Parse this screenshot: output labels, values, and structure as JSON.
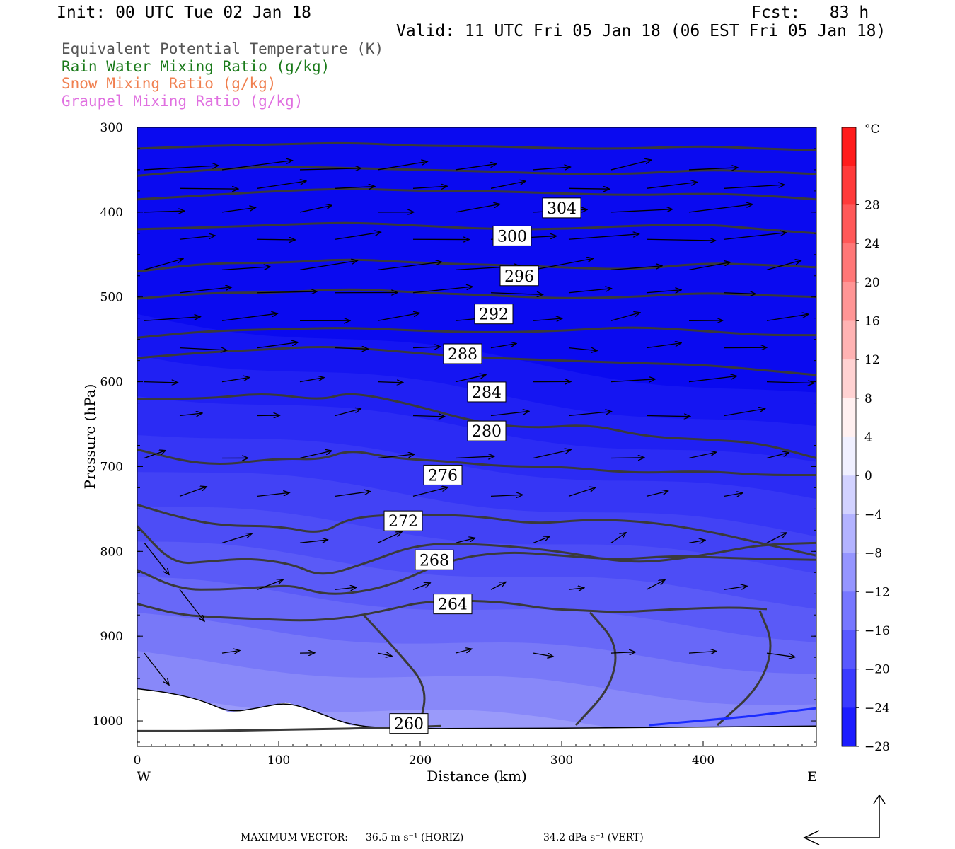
{
  "header": {
    "init": "Init: 00 UTC Tue 02 Jan 18",
    "fcst": "Fcst:   83 h",
    "valid": "Valid: 11 UTC Fri 05 Jan 18 (06 EST Fri 05 Jan 18)"
  },
  "legend": [
    {
      "label": "Equivalent Potential Temperature (K)",
      "color": "#555555"
    },
    {
      "label": "Rain Water Mixing Ratio (g/kg)",
      "color": "#1a7a1a"
    },
    {
      "label": "Snow Mixing Ratio (g/kg)",
      "color": "#f08050"
    },
    {
      "label": "Graupel Mixing Ratio (g/kg)",
      "color": "#e070e0"
    }
  ],
  "footer": {
    "max_vector_label": "MAXIMUM VECTOR:",
    "horiz": "36.5 m s⁻¹ (HORIZ)",
    "vert": "34.2 dPa s⁻¹ (VERT)"
  },
  "chart_data": {
    "type": "heatmap",
    "xlabel": "Distance (km)",
    "ylabel": "Pressure (hPa)",
    "xlim": [
      0,
      480
    ],
    "ylim": [
      1030,
      300
    ],
    "x_ticks": [
      "0",
      "100",
      "200",
      "300",
      "400"
    ],
    "y_ticks": [
      "300",
      "400",
      "500",
      "600",
      "700",
      "800",
      "900",
      "1000"
    ],
    "x_end_labels": {
      "west": "W",
      "east": "E"
    },
    "colorbar": {
      "unit": "°C",
      "labels": [
        "28",
        "24",
        "20",
        "16",
        "12",
        "8",
        "4",
        "0",
        "−4",
        "−8",
        "−12",
        "−16",
        "−20",
        "−24",
        "−28"
      ],
      "min": -32,
      "max": 32,
      "step": 4
    },
    "theta_e_contours": [
      {
        "value": 260,
        "points": [
          [
            0,
            1012
          ],
          [
            40,
            1012
          ],
          [
            120,
            1010
          ],
          [
            180,
            1008
          ],
          [
            215,
            1006
          ]
        ]
      },
      {
        "value": 264,
        "points": [
          [
            0,
            862
          ],
          [
            30,
            875
          ],
          [
            60,
            878
          ],
          [
            90,
            880
          ],
          [
            120,
            882
          ],
          [
            150,
            878
          ],
          [
            180,
            868
          ],
          [
            200,
            860
          ],
          [
            230,
            858
          ],
          [
            260,
            860
          ],
          [
            290,
            868
          ],
          [
            320,
            870
          ],
          [
            340,
            872
          ],
          [
            380,
            868
          ],
          [
            420,
            866
          ],
          [
            445,
            868
          ]
        ]
      },
      {
        "value": 268,
        "points": [
          [
            0,
            822
          ],
          [
            30,
            845
          ],
          [
            60,
            845
          ],
          [
            90,
            842
          ],
          [
            110,
            840
          ],
          [
            130,
            850
          ],
          [
            150,
            850
          ],
          [
            180,
            840
          ],
          [
            220,
            810
          ],
          [
            260,
            800
          ],
          [
            300,
            805
          ],
          [
            340,
            810
          ],
          [
            380,
            805
          ],
          [
            420,
            808
          ],
          [
            480,
            810
          ]
        ]
      },
      {
        "value": 272,
        "points": [
          [
            0,
            770
          ],
          [
            25,
            815
          ],
          [
            50,
            812
          ],
          [
            80,
            808
          ],
          [
            110,
            815
          ],
          [
            130,
            830
          ],
          [
            160,
            815
          ],
          [
            200,
            790
          ],
          [
            250,
            792
          ],
          [
            300,
            800
          ],
          [
            350,
            815
          ],
          [
            400,
            805
          ],
          [
            440,
            792
          ],
          [
            480,
            790
          ]
        ]
      },
      {
        "value": 276,
        "points": [
          [
            0,
            745
          ],
          [
            30,
            760
          ],
          [
            60,
            770
          ],
          [
            100,
            770
          ],
          [
            130,
            780
          ],
          [
            150,
            760
          ],
          [
            190,
            756
          ],
          [
            240,
            758
          ],
          [
            280,
            768
          ],
          [
            320,
            762
          ],
          [
            360,
            765
          ],
          [
            400,
            775
          ],
          [
            440,
            790
          ],
          [
            480,
            805
          ]
        ]
      },
      {
        "value": 280,
        "points": [
          [
            0,
            680
          ],
          [
            50,
            700
          ],
          [
            100,
            690
          ],
          [
            130,
            692
          ],
          [
            150,
            680
          ],
          [
            180,
            690
          ],
          [
            220,
            694
          ],
          [
            260,
            700
          ],
          [
            300,
            700
          ],
          [
            350,
            708
          ],
          [
            400,
            705
          ],
          [
            440,
            710
          ],
          [
            480,
            710
          ]
        ]
      },
      {
        "value": 284,
        "points": [
          [
            0,
            620
          ],
          [
            50,
            620
          ],
          [
            90,
            613
          ],
          [
            130,
            622
          ],
          [
            150,
            612
          ],
          [
            190,
            625
          ],
          [
            240,
            648
          ],
          [
            280,
            655
          ],
          [
            320,
            650
          ],
          [
            360,
            665
          ],
          [
            400,
            668
          ],
          [
            440,
            672
          ],
          [
            480,
            690
          ]
        ]
      },
      {
        "value": 288,
        "points": [
          [
            0,
            572
          ],
          [
            50,
            565
          ],
          [
            90,
            562
          ],
          [
            130,
            558
          ],
          [
            170,
            562
          ],
          [
            210,
            568
          ],
          [
            250,
            572
          ],
          [
            300,
            575
          ],
          [
            350,
            578
          ],
          [
            400,
            580
          ],
          [
            440,
            586
          ],
          [
            480,
            592
          ]
        ]
      },
      {
        "value": 292,
        "points": [
          [
            0,
            548
          ],
          [
            50,
            540
          ],
          [
            100,
            538
          ],
          [
            150,
            536
          ],
          [
            200,
            540
          ],
          [
            250,
            542
          ],
          [
            300,
            540
          ],
          [
            350,
            535
          ],
          [
            400,
            540
          ],
          [
            440,
            545
          ],
          [
            480,
            545
          ]
        ]
      },
      {
        "value": 296,
        "points": [
          [
            0,
            502
          ],
          [
            50,
            495
          ],
          [
            100,
            495
          ],
          [
            150,
            490
          ],
          [
            200,
            495
          ],
          [
            250,
            498
          ],
          [
            300,
            502
          ],
          [
            350,
            500
          ],
          [
            400,
            495
          ],
          [
            440,
            498
          ],
          [
            480,
            500
          ]
        ]
      },
      {
        "value": 300,
        "points": [
          [
            0,
            470
          ],
          [
            50,
            460
          ],
          [
            100,
            460
          ],
          [
            150,
            455
          ],
          [
            200,
            460
          ],
          [
            250,
            462
          ],
          [
            300,
            465
          ],
          [
            350,
            468
          ],
          [
            400,
            460
          ],
          [
            440,
            462
          ],
          [
            480,
            465
          ]
        ]
      },
      {
        "value": 304,
        "points": [
          [
            0,
            420
          ],
          [
            50,
            418
          ],
          [
            100,
            415
          ],
          [
            150,
            412
          ],
          [
            200,
            416
          ],
          [
            250,
            420
          ],
          [
            300,
            420
          ],
          [
            350,
            416
          ],
          [
            400,
            414
          ],
          [
            440,
            420
          ],
          [
            480,
            425
          ]
        ]
      },
      {
        "value": 308,
        "points": [
          [
            0,
            385
          ],
          [
            50,
            380
          ],
          [
            100,
            375
          ],
          [
            150,
            372
          ],
          [
            200,
            375
          ],
          [
            250,
            375
          ],
          [
            300,
            378
          ],
          [
            350,
            380
          ],
          [
            400,
            378
          ],
          [
            440,
            380
          ],
          [
            480,
            385
          ]
        ]
      },
      {
        "value": 312,
        "points": [
          [
            0,
            357
          ],
          [
            50,
            350
          ],
          [
            100,
            346
          ],
          [
            150,
            348
          ],
          [
            200,
            350
          ],
          [
            250,
            352
          ],
          [
            300,
            355
          ],
          [
            350,
            355
          ],
          [
            400,
            350
          ],
          [
            440,
            352
          ],
          [
            480,
            355
          ]
        ]
      },
      {
        "value": 316,
        "points": [
          [
            0,
            325
          ],
          [
            50,
            322
          ],
          [
            100,
            320
          ],
          [
            150,
            318
          ],
          [
            200,
            322
          ],
          [
            250,
            322
          ],
          [
            300,
            325
          ],
          [
            350,
            325
          ],
          [
            400,
            322
          ],
          [
            440,
            325
          ],
          [
            480,
            327
          ]
        ]
      }
    ],
    "contour_labels_shown": [
      "304",
      "300",
      "296",
      "292",
      "288",
      "284",
      "280",
      "276",
      "272",
      "268",
      "264",
      "260"
    ],
    "wind_vectors_note": "Horizontal/vertical circulation arrows overlaid; max vector 36.5 m/s (horiz), 34.2 dPa/s (vert)"
  }
}
